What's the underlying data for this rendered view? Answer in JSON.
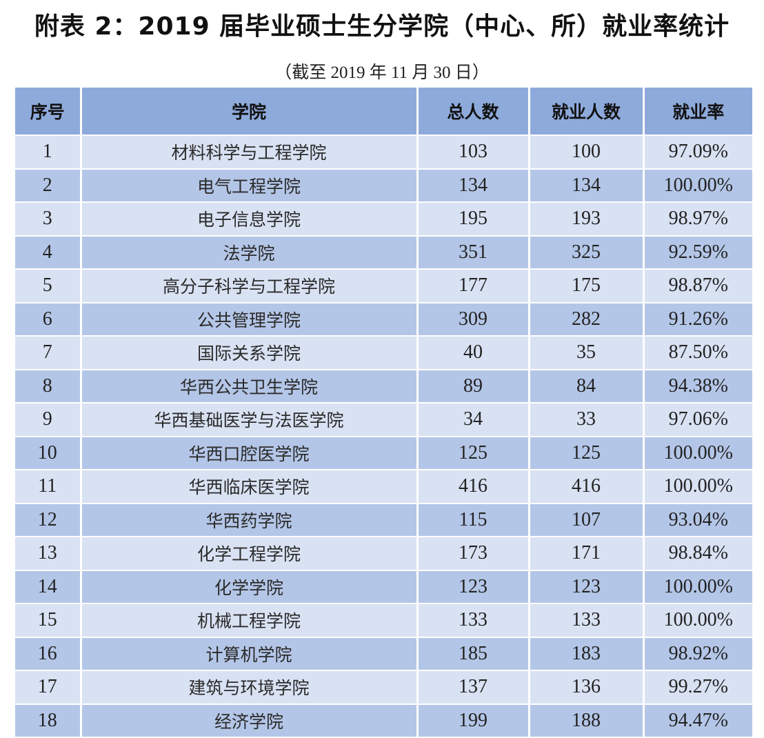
{
  "document": {
    "title": "附表 2：2019 届毕业硕士生分学院（中心、所）就业率统计",
    "subtitle": "（截至 2019 年 11 月 30 日）"
  },
  "colors": {
    "header_bg": "#8eaadb",
    "row_light": "#d9e2f3",
    "row_dark": "#b4c6e7",
    "border": "#ffffff"
  },
  "table": {
    "headers": [
      "序号",
      "学院",
      "总人数",
      "就业人数",
      "就业率"
    ],
    "rows": [
      [
        "1",
        "材料科学与工程学院",
        "103",
        "100",
        "97.09%"
      ],
      [
        "2",
        "电气工程学院",
        "134",
        "134",
        "100.00%"
      ],
      [
        "3",
        "电子信息学院",
        "195",
        "193",
        "98.97%"
      ],
      [
        "4",
        "法学院",
        "351",
        "325",
        "92.59%"
      ],
      [
        "5",
        "高分子科学与工程学院",
        "177",
        "175",
        "98.87%"
      ],
      [
        "6",
        "公共管理学院",
        "309",
        "282",
        "91.26%"
      ],
      [
        "7",
        "国际关系学院",
        "40",
        "35",
        "87.50%"
      ],
      [
        "8",
        "华西公共卫生学院",
        "89",
        "84",
        "94.38%"
      ],
      [
        "9",
        "华西基础医学与法医学院",
        "34",
        "33",
        "97.06%"
      ],
      [
        "10",
        "华西口腔医学院",
        "125",
        "125",
        "100.00%"
      ],
      [
        "11",
        "华西临床医学院",
        "416",
        "416",
        "100.00%"
      ],
      [
        "12",
        "华西药学院",
        "115",
        "107",
        "93.04%"
      ],
      [
        "13",
        "化学工程学院",
        "173",
        "171",
        "98.84%"
      ],
      [
        "14",
        "化学学院",
        "123",
        "123",
        "100.00%"
      ],
      [
        "15",
        "机械工程学院",
        "133",
        "133",
        "100.00%"
      ],
      [
        "16",
        "计算机学院",
        "185",
        "183",
        "98.92%"
      ],
      [
        "17",
        "建筑与环境学院",
        "137",
        "136",
        "99.27%"
      ],
      [
        "18",
        "经济学院",
        "199",
        "188",
        "94.47%"
      ]
    ]
  }
}
